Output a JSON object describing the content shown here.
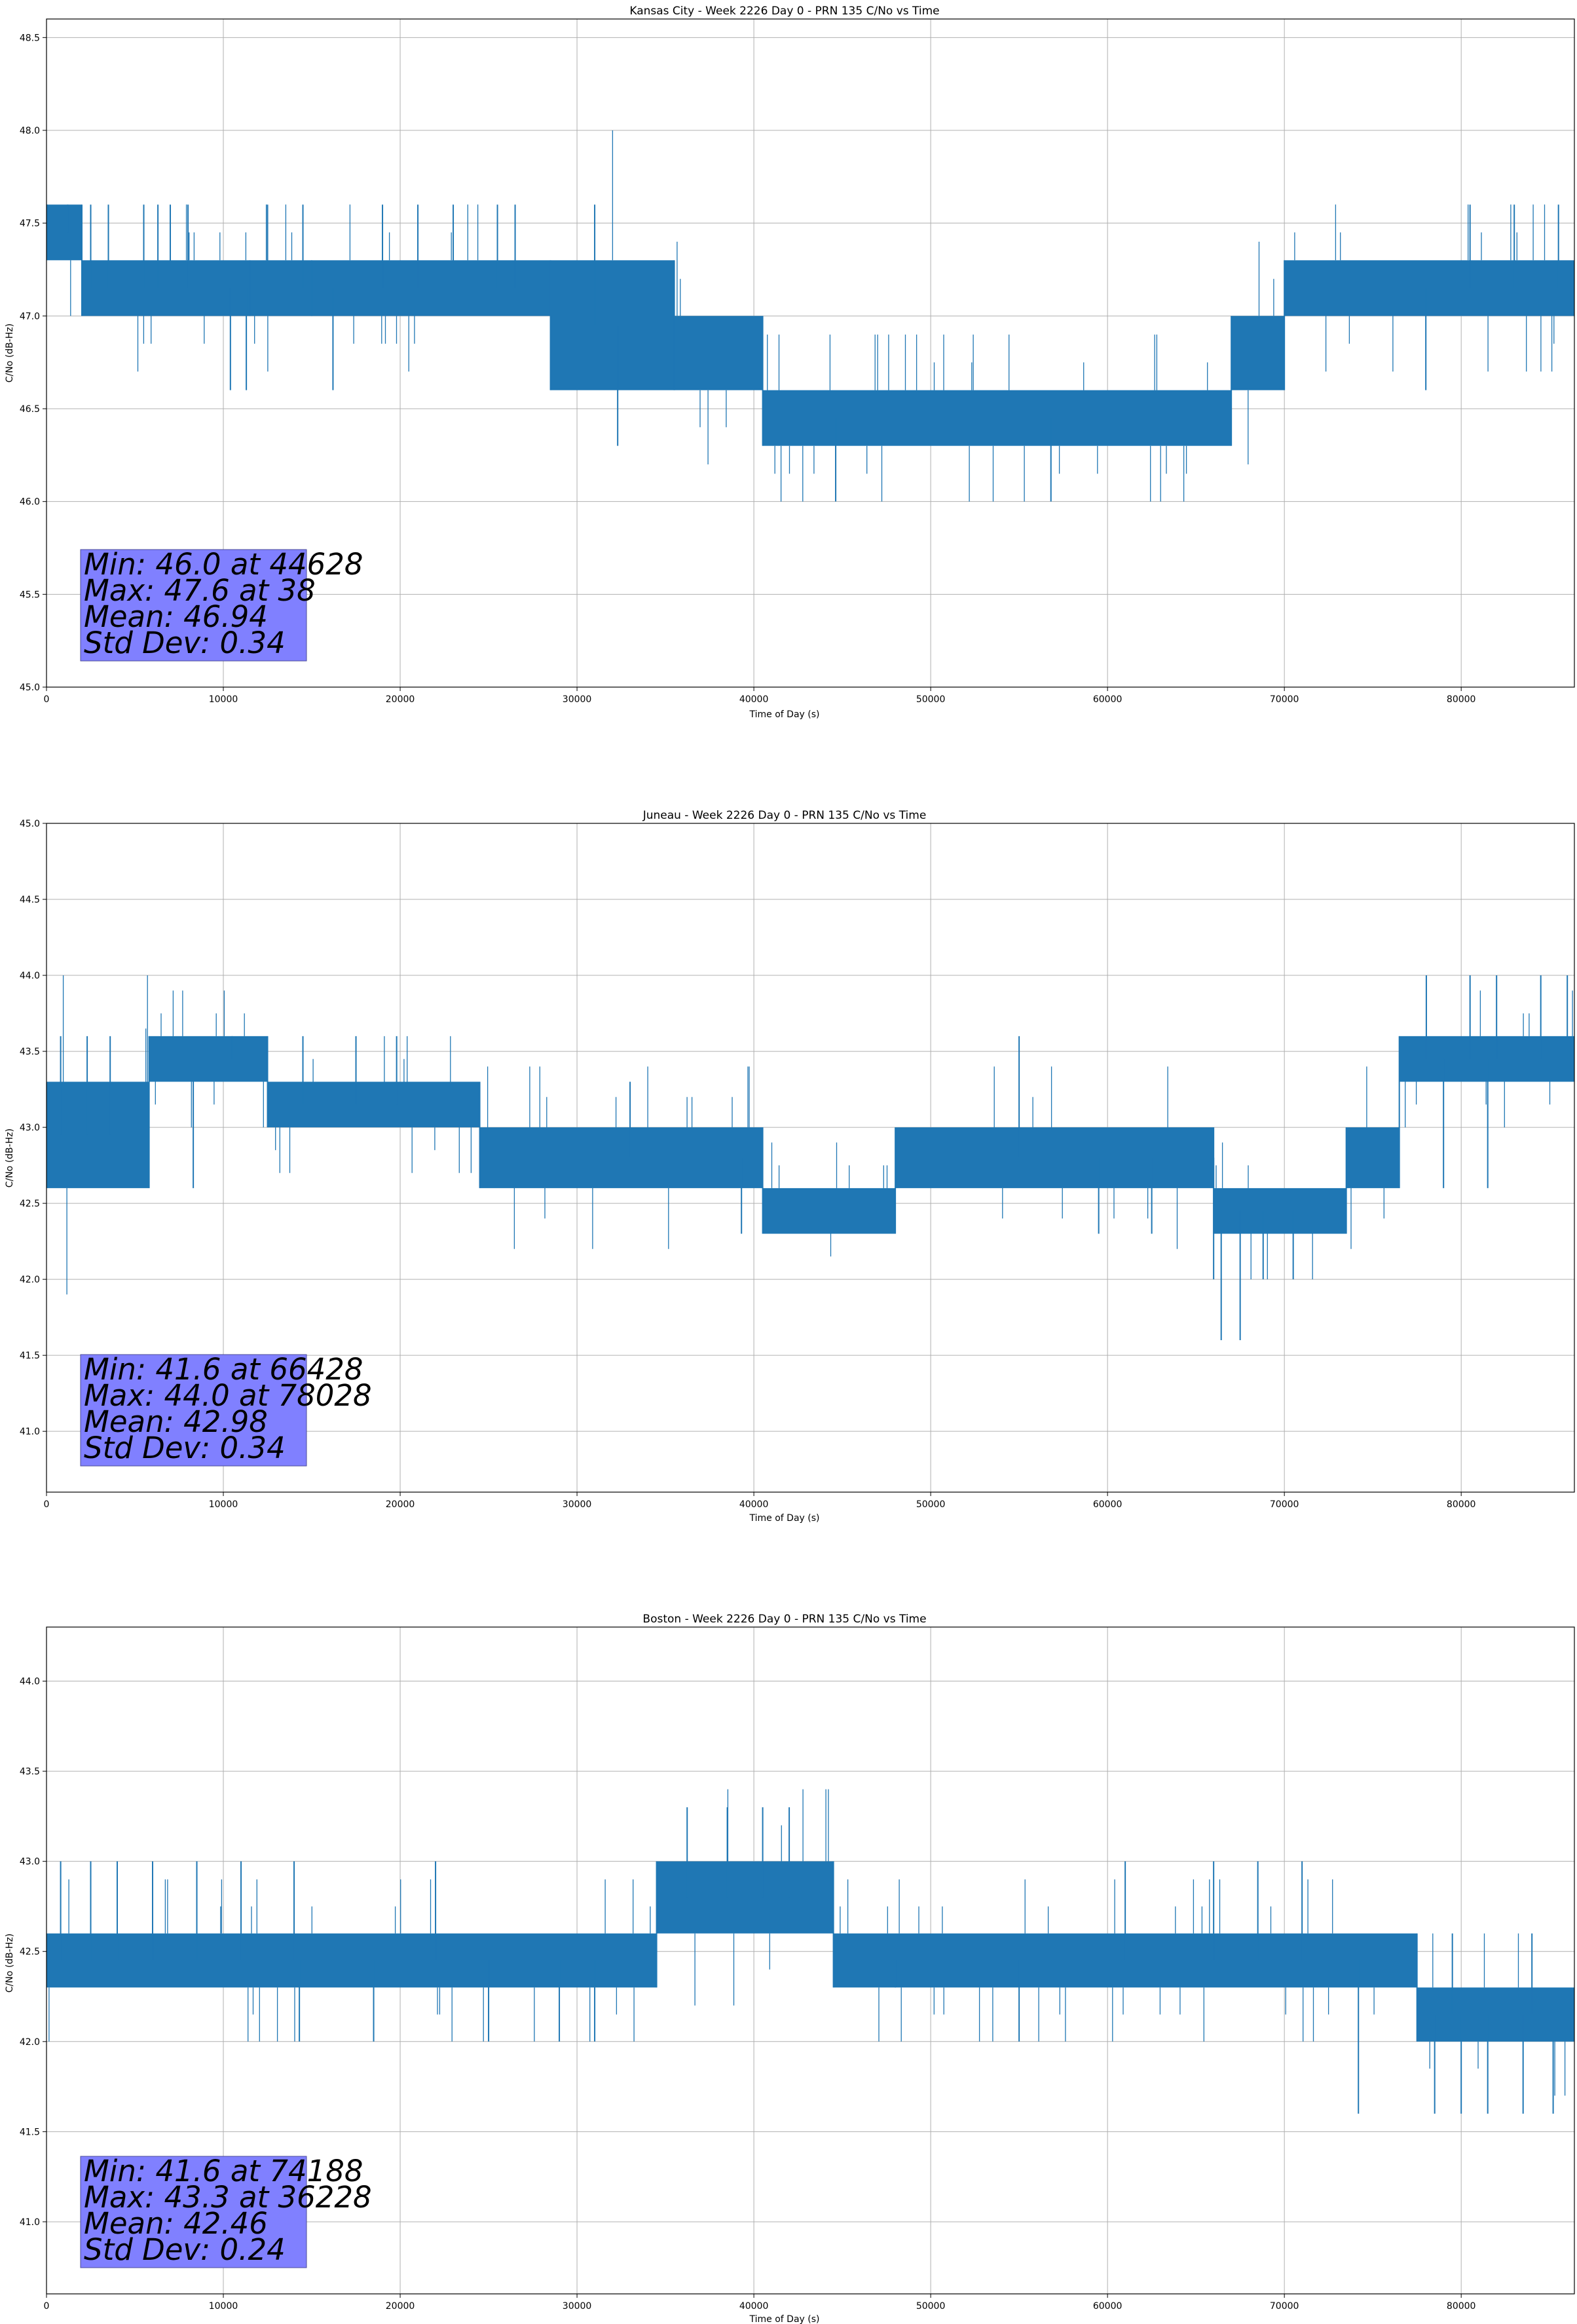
{
  "figure": {
    "line_color": "#1f77b4",
    "grid": true,
    "annotation_box_color": "#8080ff"
  },
  "chart_data": [
    {
      "type": "line",
      "title": "Kansas City - Week 2226 Day 0 - PRN 135 C/No vs Time",
      "xlabel": "Time of Day (s)",
      "ylabel": "C/No (dB-Hz)",
      "xlim": [
        0,
        86400
      ],
      "ylim": [
        45.0,
        48.6
      ],
      "xticks": [
        0,
        10000,
        20000,
        30000,
        40000,
        50000,
        60000,
        70000,
        80000
      ],
      "yticks": [
        45.0,
        45.5,
        46.0,
        46.5,
        47.0,
        47.5,
        48.0,
        48.5
      ],
      "stats": [
        "Min: 46.0 at 44628",
        "Max: 47.6 at 38",
        "Mean: 46.94",
        "Std Dev: 0.34"
      ],
      "levels": [
        {
          "x0": 0,
          "x1": 2000,
          "y0": 47.3,
          "y1": 47.6
        },
        {
          "x0": 2000,
          "x1": 11500,
          "y0": 47.0,
          "y1": 47.3
        },
        {
          "x0": 11500,
          "x1": 15000,
          "y0": 47.0,
          "y1": 47.3
        },
        {
          "x0": 15000,
          "x1": 28500,
          "y0": 47.0,
          "y1": 47.3
        },
        {
          "x0": 28500,
          "x1": 35500,
          "y0": 46.6,
          "y1": 47.3
        },
        {
          "x0": 35500,
          "x1": 40500,
          "y0": 46.6,
          "y1": 47.0
        },
        {
          "x0": 40500,
          "x1": 67000,
          "y0": 46.3,
          "y1": 46.6
        },
        {
          "x0": 67000,
          "x1": 70000,
          "y0": 46.6,
          "y1": 47.0
        },
        {
          "x0": 70000,
          "x1": 86400,
          "y0": 47.0,
          "y1": 47.3
        }
      ],
      "spikes": [
        [
          38,
          47.6
        ],
        [
          1200,
          47.6
        ],
        [
          2500,
          47.6
        ],
        [
          3500,
          47.6
        ],
        [
          5500,
          47.6
        ],
        [
          6300,
          47.6
        ],
        [
          7000,
          47.6
        ],
        [
          8000,
          47.6
        ],
        [
          10400,
          46.6
        ],
        [
          11300,
          46.6
        ],
        [
          12500,
          47.6
        ],
        [
          14500,
          47.6
        ],
        [
          16200,
          46.6
        ],
        [
          19000,
          47.6
        ],
        [
          21000,
          47.6
        ],
        [
          23000,
          47.6
        ],
        [
          25500,
          47.6
        ],
        [
          26500,
          47.6
        ],
        [
          31000,
          47.6
        ],
        [
          32300,
          46.3
        ],
        [
          44628,
          46.0
        ],
        [
          56800,
          46.0
        ],
        [
          78000,
          46.6
        ],
        [
          80500,
          47.6
        ],
        [
          83000,
          47.6
        ],
        [
          85500,
          47.6
        ]
      ]
    },
    {
      "type": "line",
      "title": "Juneau - Week 2226 Day 0 - PRN 135 C/No vs Time",
      "xlabel": "Time of Day (s)",
      "ylabel": "C/No (dB-Hz)",
      "xlim": [
        0,
        86400
      ],
      "ylim": [
        40.6,
        45.0
      ],
      "xticks": [
        0,
        10000,
        20000,
        30000,
        40000,
        50000,
        60000,
        70000,
        80000
      ],
      "yticks": [
        41.0,
        41.5,
        42.0,
        42.5,
        43.0,
        43.5,
        44.0,
        44.5,
        45.0
      ],
      "stats": [
        "Min: 41.6 at 66428",
        "Max: 44.0 at 78028",
        "Mean: 42.98",
        "Std Dev: 0.34"
      ],
      "levels": [
        {
          "x0": 0,
          "x1": 5800,
          "y0": 42.6,
          "y1": 43.3
        },
        {
          "x0": 5800,
          "x1": 12500,
          "y0": 43.3,
          "y1": 43.6
        },
        {
          "x0": 12500,
          "x1": 24500,
          "y0": 43.0,
          "y1": 43.3
        },
        {
          "x0": 24500,
          "x1": 40500,
          "y0": 42.6,
          "y1": 43.0
        },
        {
          "x0": 40500,
          "x1": 48000,
          "y0": 42.3,
          "y1": 42.6
        },
        {
          "x0": 48000,
          "x1": 66000,
          "y0": 42.6,
          "y1": 43.0
        },
        {
          "x0": 66000,
          "x1": 73500,
          "y0": 42.3,
          "y1": 42.6
        },
        {
          "x0": 73500,
          "x1": 76500,
          "y0": 42.6,
          "y1": 43.0
        },
        {
          "x0": 76500,
          "x1": 86400,
          "y0": 43.3,
          "y1": 43.6
        }
      ],
      "spikes": [
        [
          800,
          43.6
        ],
        [
          2300,
          43.6
        ],
        [
          3600,
          43.6
        ],
        [
          8300,
          42.6
        ],
        [
          10500,
          43.6
        ],
        [
          14500,
          43.6
        ],
        [
          17500,
          43.6
        ],
        [
          19800,
          43.6
        ],
        [
          33000,
          43.3
        ],
        [
          39300,
          42.3
        ],
        [
          55000,
          43.6
        ],
        [
          59500,
          42.3
        ],
        [
          62500,
          42.3
        ],
        [
          66000,
          42.0
        ],
        [
          66428,
          41.6
        ],
        [
          67500,
          41.6
        ],
        [
          68800,
          42.0
        ],
        [
          70500,
          42.0
        ],
        [
          78028,
          44.0
        ],
        [
          80500,
          44.0
        ],
        [
          82000,
          44.0
        ],
        [
          84500,
          44.0
        ],
        [
          86000,
          44.0
        ],
        [
          79000,
          42.6
        ],
        [
          81500,
          42.6
        ]
      ]
    },
    {
      "type": "line",
      "title": "Boston - Week 2226 Day 0 - PRN 135 C/No vs Time",
      "xlabel": "Time of Day (s)",
      "ylabel": "C/No (dB-Hz)",
      "xlim": [
        0,
        86400
      ],
      "ylim": [
        40.6,
        44.3
      ],
      "xticks": [
        0,
        10000,
        20000,
        30000,
        40000,
        50000,
        60000,
        70000,
        80000
      ],
      "yticks": [
        41.0,
        41.5,
        42.0,
        42.5,
        43.0,
        43.5,
        44.0
      ],
      "stats": [
        "Min: 41.6 at 74188",
        "Max: 43.3 at 36228",
        "Mean: 42.46",
        "Std Dev: 0.24"
      ],
      "levels": [
        {
          "x0": 0,
          "x1": 34500,
          "y0": 42.3,
          "y1": 42.6
        },
        {
          "x0": 34500,
          "x1": 44500,
          "y0": 42.6,
          "y1": 43.0
        },
        {
          "x0": 44500,
          "x1": 77500,
          "y0": 42.3,
          "y1": 42.6
        },
        {
          "x0": 77500,
          "x1": 86400,
          "y0": 42.0,
          "y1": 42.3
        }
      ],
      "spikes": [
        [
          800,
          43.0
        ],
        [
          2500,
          43.0
        ],
        [
          4000,
          43.0
        ],
        [
          6000,
          43.0
        ],
        [
          8500,
          43.0
        ],
        [
          11000,
          43.0
        ],
        [
          14000,
          43.0
        ],
        [
          14300,
          42.0
        ],
        [
          18500,
          42.0
        ],
        [
          22000,
          43.0
        ],
        [
          25000,
          42.0
        ],
        [
          29000,
          42.0
        ],
        [
          31000,
          42.0
        ],
        [
          36228,
          43.3
        ],
        [
          38500,
          43.3
        ],
        [
          40500,
          43.3
        ],
        [
          42000,
          43.3
        ],
        [
          48000,
          42.3
        ],
        [
          55000,
          42.0
        ],
        [
          61000,
          43.0
        ],
        [
          66000,
          43.0
        ],
        [
          68500,
          43.0
        ],
        [
          71000,
          43.0
        ],
        [
          74188,
          41.6
        ],
        [
          78500,
          41.6
        ],
        [
          80000,
          41.6
        ],
        [
          81500,
          41.6
        ],
        [
          83500,
          41.6
        ],
        [
          85200,
          41.6
        ],
        [
          79500,
          42.6
        ],
        [
          84000,
          42.6
        ]
      ]
    }
  ]
}
